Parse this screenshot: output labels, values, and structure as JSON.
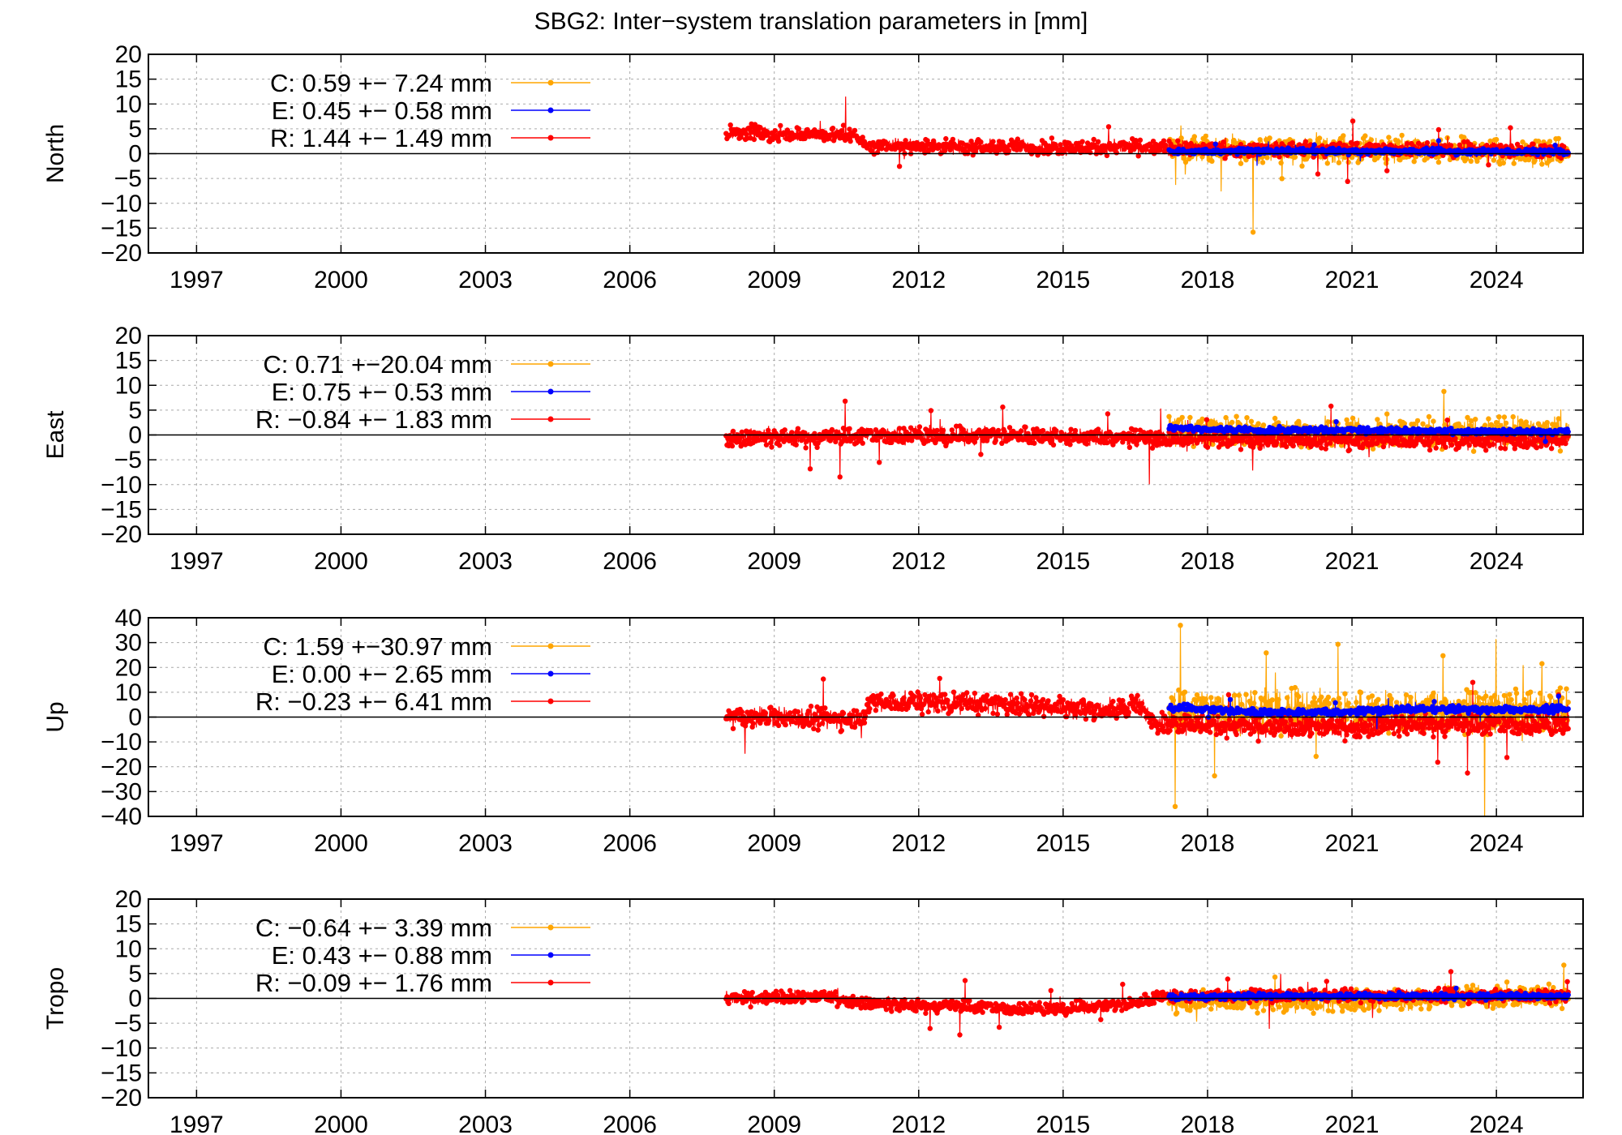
{
  "title": "SBG2: Inter−system translation parameters in [mm]",
  "colors": {
    "C": "#ffa500",
    "E": "#0000ff",
    "R": "#ff0000",
    "axis": "#000000",
    "grid": "#aaaaaa"
  },
  "chart_data": [
    {
      "type": "scatter",
      "ylabel": "North",
      "ylim": [
        -20,
        20
      ],
      "yticks": [
        -20,
        -15,
        -10,
        -5,
        0,
        5,
        10,
        15,
        20
      ],
      "xlim": [
        1996,
        2025.8
      ],
      "xticks": [
        1997,
        2000,
        2003,
        2006,
        2009,
        2012,
        2015,
        2018,
        2021,
        2024
      ],
      "grid": true,
      "legend_position": "top-left",
      "legend": [
        {
          "key": "C",
          "text": "C:   0.59 +− 7.24 mm"
        },
        {
          "key": "E",
          "text": "E:  0.45 +− 0.58 mm"
        },
        {
          "key": "R",
          "text": "R:  1.44 +− 1.49 mm"
        }
      ],
      "series": [
        {
          "name": "R",
          "x": [
            2008.0,
            2008.5,
            2009.0,
            2009.5,
            2010.0,
            2010.5,
            2011.0,
            2012.0,
            2013.0,
            2014.0,
            2015.0,
            2016.0,
            2016.5,
            2017.0,
            2018.0,
            2019.0,
            2020.0,
            2021.0,
            2022.0,
            2023.0,
            2024.0,
            2025.5
          ],
          "y": [
            4,
            4.5,
            3.5,
            4,
            3.8,
            4,
            1.5,
            1.5,
            1.2,
            1.5,
            1.2,
            1.3,
            1.5,
            1.0,
            1.0,
            0.8,
            1.0,
            0.9,
            1.0,
            0.8,
            0.7,
            0.5
          ],
          "spread": 2.0
        },
        {
          "name": "C",
          "x": [
            2017.2,
            2018.0,
            2019.0,
            2020.0,
            2021.0,
            2022.0,
            2023.0,
            2024.0,
            2025.5
          ],
          "y": [
            1.0,
            1.0,
            0.5,
            0.8,
            0.8,
            0.6,
            0.6,
            0.3,
            0.0
          ],
          "spread": 3.5
        },
        {
          "name": "E",
          "x": [
            2017.2,
            2018.0,
            2019.0,
            2020.0,
            2021.0,
            2022.0,
            2023.0,
            2024.0,
            2025.5
          ],
          "y": [
            0.5,
            0.4,
            0.5,
            0.5,
            0.4,
            0.5,
            0.4,
            0.4,
            0.4
          ],
          "spread": 0.8
        }
      ]
    },
    {
      "type": "scatter",
      "ylabel": "East",
      "ylim": [
        -20,
        20
      ],
      "yticks": [
        -20,
        -15,
        -10,
        -5,
        0,
        5,
        10,
        15,
        20
      ],
      "xlim": [
        1996,
        2025.8
      ],
      "xticks": [
        1997,
        2000,
        2003,
        2006,
        2009,
        2012,
        2015,
        2018,
        2021,
        2024
      ],
      "grid": true,
      "legend_position": "top-left",
      "legend": [
        {
          "key": "C",
          "text": "C:   0.71 +−20.04 mm"
        },
        {
          "key": "E",
          "text": "E:  0.75 +− 0.53 mm"
        },
        {
          "key": "R",
          "text": "R:  −0.84 +− 1.83 mm"
        }
      ],
      "series": [
        {
          "name": "R",
          "x": [
            2008.0,
            2009.0,
            2010.0,
            2011.0,
            2012.0,
            2013.0,
            2014.0,
            2015.0,
            2016.0,
            2017.0,
            2018.0,
            2019.0,
            2020.0,
            2021.0,
            2022.0,
            2023.0,
            2024.0,
            2025.5
          ],
          "y": [
            -0.5,
            -0.5,
            -0.5,
            0,
            0,
            -0.3,
            0,
            -0.3,
            -0.5,
            -0.8,
            -1.0,
            -1.0,
            -1.0,
            -1.0,
            -1.0,
            -1.0,
            -1.0,
            -1.0
          ],
          "spread": 2.5
        },
        {
          "name": "C",
          "x": [
            2017.2,
            2018.0,
            2019.0,
            2020.0,
            2021.0,
            2022.0,
            2023.0,
            2024.0,
            2025.5
          ],
          "y": [
            1.0,
            1.0,
            0.5,
            0.5,
            0.5,
            0.5,
            0.5,
            0.5,
            0.5
          ],
          "spread": 4.0
        },
        {
          "name": "E",
          "x": [
            2017.2,
            2018.0,
            2019.0,
            2020.0,
            2021.0,
            2022.0,
            2023.0,
            2024.0,
            2025.5
          ],
          "y": [
            1.5,
            1.2,
            1.0,
            1.0,
            1.0,
            0.8,
            0.8,
            0.7,
            0.7
          ],
          "spread": 0.8
        }
      ]
    },
    {
      "type": "scatter",
      "ylabel": "Up",
      "ylim": [
        -40,
        40
      ],
      "yticks": [
        -40,
        -30,
        -20,
        -10,
        0,
        10,
        20,
        30,
        40
      ],
      "xlim": [
        1996,
        2025.8
      ],
      "xticks": [
        1997,
        2000,
        2003,
        2006,
        2009,
        2012,
        2015,
        2018,
        2021,
        2024
      ],
      "grid": true,
      "legend_position": "top-left",
      "legend": [
        {
          "key": "C",
          "text": "C:   1.59 +−30.97 mm"
        },
        {
          "key": "E",
          "text": "E:  0.00 +− 2.65 mm"
        },
        {
          "key": "R",
          "text": "R:  −0.23 +− 6.41 mm"
        }
      ],
      "series": [
        {
          "name": "R",
          "x": [
            2008.0,
            2009.0,
            2010.0,
            2010.9,
            2011.0,
            2012.0,
            2013.0,
            2014.0,
            2015.0,
            2016.0,
            2016.5,
            2017.0,
            2018.0,
            2019.0,
            2020.0,
            2021.0,
            2022.0,
            2023.0,
            2024.0,
            2025.5
          ],
          "y": [
            0,
            0,
            -1,
            0,
            6,
            6,
            6,
            5,
            4,
            3,
            5,
            -2,
            -3,
            -4,
            -4,
            -4,
            -3,
            -3,
            -3,
            -3
          ],
          "spread": 6.0
        },
        {
          "name": "C",
          "x": [
            2017.2,
            2018.0,
            2019.0,
            2020.0,
            2021.0,
            2022.0,
            2023.0,
            2024.0,
            2025.5
          ],
          "y": [
            3,
            3,
            2,
            2,
            2,
            2,
            2,
            2,
            2
          ],
          "spread": 12.0
        },
        {
          "name": "E",
          "x": [
            2017.2,
            2018.0,
            2019.0,
            2020.0,
            2021.0,
            2022.0,
            2023.0,
            2024.0,
            2025.5
          ],
          "y": [
            4,
            3,
            2,
            2,
            2,
            3,
            3,
            3,
            3
          ],
          "spread": 2.0
        }
      ]
    },
    {
      "type": "scatter",
      "ylabel": "Tropo",
      "ylim": [
        -20,
        20
      ],
      "yticks": [
        -20,
        -15,
        -10,
        -5,
        0,
        5,
        10,
        15,
        20
      ],
      "xlim": [
        1996,
        2025.8
      ],
      "xticks": [
        1997,
        2000,
        2003,
        2006,
        2009,
        2012,
        2015,
        2018,
        2021,
        2024
      ],
      "grid": true,
      "legend_position": "top-left",
      "legend": [
        {
          "key": "C",
          "text": "C:  −0.64 +− 3.39 mm"
        },
        {
          "key": "E",
          "text": "E:  0.43 +− 0.88 mm"
        },
        {
          "key": "R",
          "text": "R:  −0.09 +− 1.76 mm"
        }
      ],
      "series": [
        {
          "name": "R",
          "x": [
            2008.0,
            2009.0,
            2010.0,
            2011.0,
            2012.0,
            2013.0,
            2014.0,
            2015.0,
            2016.0,
            2016.5,
            2017.0,
            2018.0,
            2019.0,
            2020.0,
            2021.0,
            2022.0,
            2023.0,
            2024.0,
            2025.5
          ],
          "y": [
            0,
            0,
            0.5,
            -1,
            -1.5,
            -1.5,
            -2,
            -2,
            -1.5,
            -1.0,
            0.5,
            0.5,
            0.5,
            0.5,
            0.5,
            0.5,
            0.5,
            0.5,
            0.5
          ],
          "spread": 1.8
        },
        {
          "name": "C",
          "x": [
            2017.2,
            2018.0,
            2019.0,
            2020.0,
            2021.0,
            2022.0,
            2023.0,
            2024.0,
            2025.5
          ],
          "y": [
            -0.5,
            -0.5,
            -0.5,
            -0.5,
            -0.5,
            -0.3,
            0.5,
            0.5,
            0.5
          ],
          "spread": 3.0
        },
        {
          "name": "E",
          "x": [
            2017.2,
            2018.0,
            2019.0,
            2020.0,
            2021.0,
            2022.0,
            2023.0,
            2024.0,
            2025.5
          ],
          "y": [
            0.3,
            0.3,
            0.5,
            0.5,
            0.5,
            0.5,
            0.4,
            0.4,
            0.4
          ],
          "spread": 0.8
        }
      ]
    }
  ]
}
